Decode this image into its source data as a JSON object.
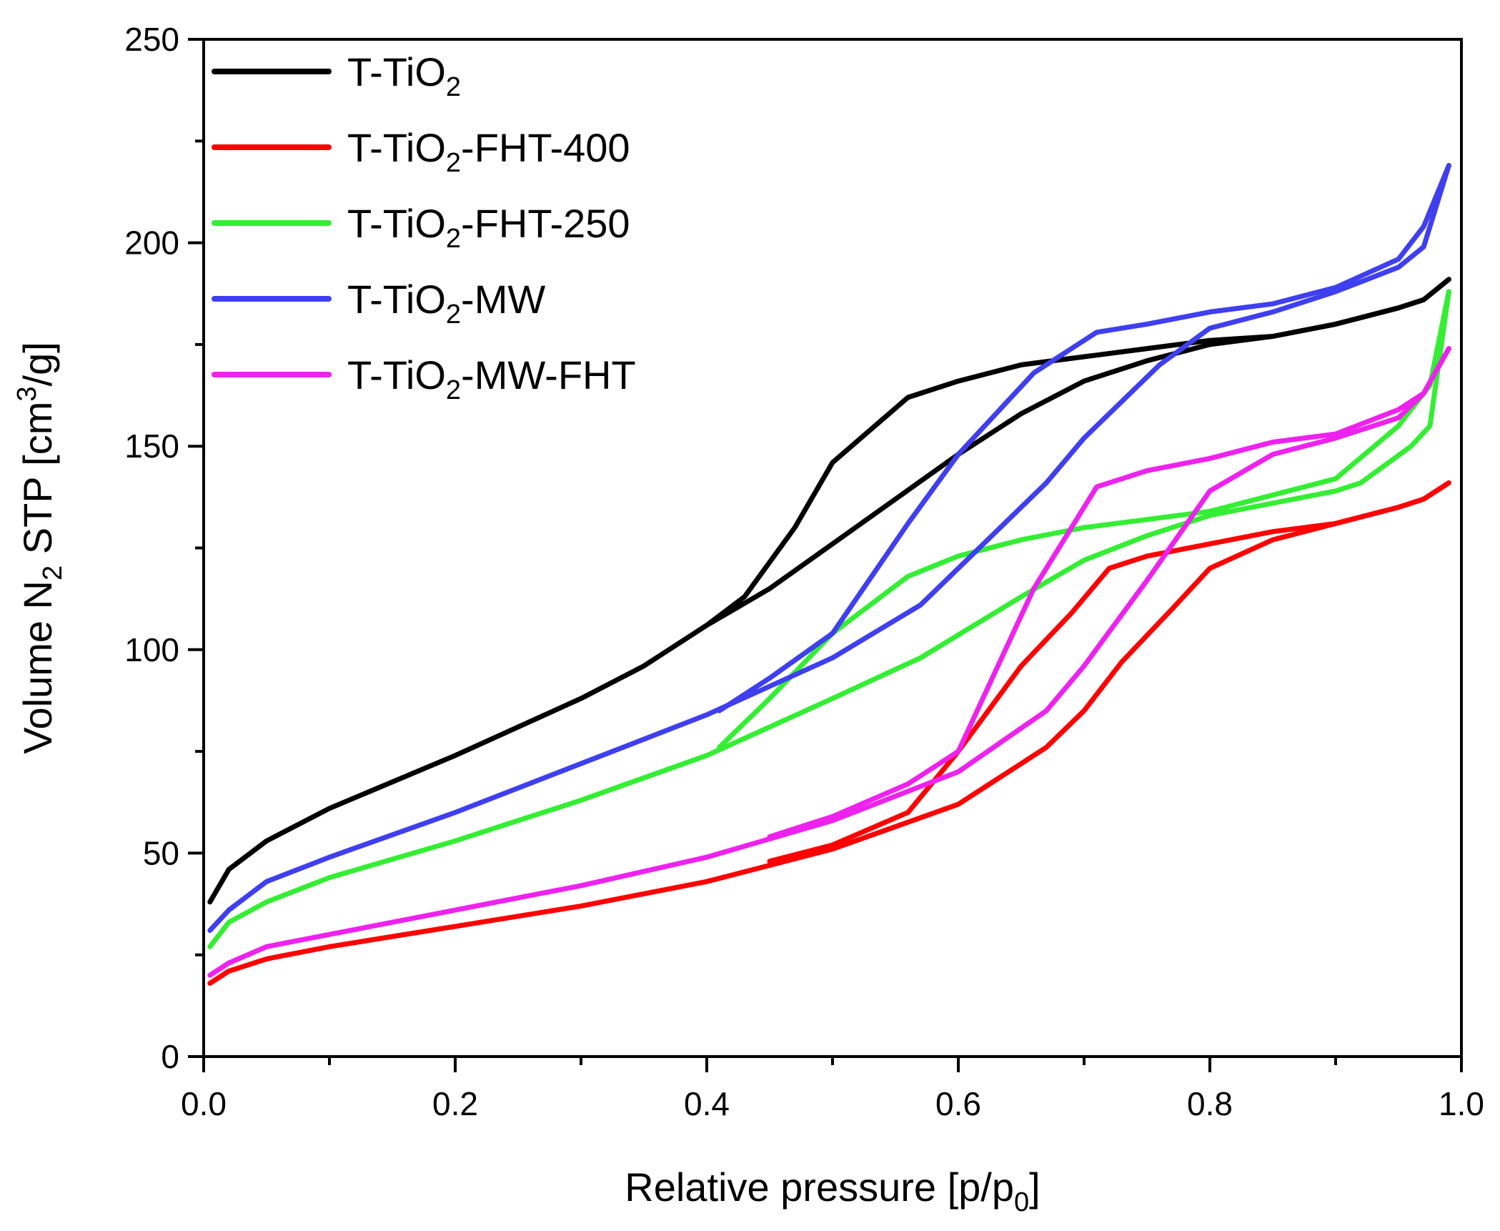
{
  "chart_data": {
    "type": "line",
    "title": "",
    "xlabel": {
      "main": "Relative pressure [p/p",
      "sub": "0",
      "end": "]"
    },
    "ylabel": {
      "a": "Volume N",
      "sub": "2",
      "b": " STP [cm",
      "sup": "3",
      "c": "/g]"
    },
    "xlim": [
      0,
      1.0
    ],
    "ylim": [
      0,
      250
    ],
    "xticks": [
      0.0,
      0.2,
      0.4,
      0.6,
      0.8,
      1.0
    ],
    "xtick_labels": [
      "0.0",
      "0.2",
      "0.4",
      "0.6",
      "0.8",
      "1.0"
    ],
    "yticks": [
      0,
      50,
      100,
      150,
      200,
      250
    ],
    "ytick_labels": [
      "0",
      "50",
      "100",
      "150",
      "200",
      "250"
    ],
    "legend_position": "top-left",
    "series": [
      {
        "name": "T-TiO2",
        "legend": {
          "a": "T-TiO",
          "sub": "2",
          "b": ""
        },
        "color": "#000000",
        "adsorption": [
          [
            0.005,
            38
          ],
          [
            0.02,
            46
          ],
          [
            0.05,
            53
          ],
          [
            0.1,
            61
          ],
          [
            0.2,
            74
          ],
          [
            0.3,
            88
          ],
          [
            0.35,
            96
          ],
          [
            0.4,
            106
          ],
          [
            0.45,
            115
          ],
          [
            0.5,
            126
          ],
          [
            0.55,
            137
          ],
          [
            0.6,
            148
          ],
          [
            0.65,
            158
          ],
          [
            0.7,
            166
          ],
          [
            0.75,
            171
          ],
          [
            0.8,
            175
          ],
          [
            0.85,
            177
          ],
          [
            0.9,
            180
          ],
          [
            0.95,
            184
          ],
          [
            0.97,
            186
          ],
          [
            0.99,
            191
          ]
        ],
        "desorption": [
          [
            0.99,
            191
          ],
          [
            0.97,
            186
          ],
          [
            0.95,
            184
          ],
          [
            0.9,
            180
          ],
          [
            0.85,
            177
          ],
          [
            0.8,
            176
          ],
          [
            0.75,
            174
          ],
          [
            0.7,
            172
          ],
          [
            0.65,
            170
          ],
          [
            0.6,
            166
          ],
          [
            0.56,
            162
          ],
          [
            0.5,
            146
          ],
          [
            0.47,
            130
          ],
          [
            0.43,
            113
          ],
          [
            0.4,
            106
          ]
        ]
      },
      {
        "name": "T-TiO2-FHT-400",
        "legend": {
          "a": "T-TiO",
          "sub": "2",
          "b": "-FHT-400"
        },
        "color": "#ff0000",
        "adsorption": [
          [
            0.005,
            18
          ],
          [
            0.02,
            21
          ],
          [
            0.05,
            24
          ],
          [
            0.1,
            27
          ],
          [
            0.2,
            32
          ],
          [
            0.3,
            37
          ],
          [
            0.4,
            43
          ],
          [
            0.5,
            51
          ],
          [
            0.6,
            62
          ],
          [
            0.67,
            76
          ],
          [
            0.7,
            85
          ],
          [
            0.73,
            97
          ],
          [
            0.77,
            110
          ],
          [
            0.8,
            120
          ],
          [
            0.85,
            127
          ],
          [
            0.9,
            131
          ],
          [
            0.95,
            135
          ],
          [
            0.97,
            137
          ],
          [
            0.99,
            141
          ]
        ],
        "desorption": [
          [
            0.99,
            141
          ],
          [
            0.97,
            137
          ],
          [
            0.95,
            135
          ],
          [
            0.9,
            131
          ],
          [
            0.85,
            129
          ],
          [
            0.8,
            126
          ],
          [
            0.75,
            123
          ],
          [
            0.72,
            120
          ],
          [
            0.69,
            109
          ],
          [
            0.65,
            96
          ],
          [
            0.6,
            75
          ],
          [
            0.56,
            60
          ],
          [
            0.5,
            52
          ],
          [
            0.45,
            48
          ]
        ]
      },
      {
        "name": "T-TiO2-FHT-250",
        "legend": {
          "a": "T-TiO",
          "sub": "2",
          "b": "-FHT-250"
        },
        "color": "#33ee33",
        "adsorption": [
          [
            0.005,
            27
          ],
          [
            0.02,
            33
          ],
          [
            0.05,
            38
          ],
          [
            0.1,
            44
          ],
          [
            0.2,
            53
          ],
          [
            0.3,
            63
          ],
          [
            0.4,
            74
          ],
          [
            0.5,
            88
          ],
          [
            0.57,
            98
          ],
          [
            0.65,
            113
          ],
          [
            0.7,
            122
          ],
          [
            0.75,
            128
          ],
          [
            0.8,
            133
          ],
          [
            0.85,
            136
          ],
          [
            0.9,
            139
          ],
          [
            0.92,
            141
          ],
          [
            0.96,
            150
          ],
          [
            0.975,
            155
          ],
          [
            0.99,
            188
          ]
        ],
        "desorption": [
          [
            0.99,
            188
          ],
          [
            0.975,
            165
          ],
          [
            0.95,
            155
          ],
          [
            0.9,
            142
          ],
          [
            0.85,
            138
          ],
          [
            0.8,
            134
          ],
          [
            0.75,
            132
          ],
          [
            0.7,
            130
          ],
          [
            0.65,
            127
          ],
          [
            0.6,
            123
          ],
          [
            0.56,
            118
          ],
          [
            0.5,
            104
          ],
          [
            0.45,
            88
          ],
          [
            0.41,
            76
          ]
        ]
      },
      {
        "name": "T-TiO2-MW",
        "legend": {
          "a": "T-TiO",
          "sub": "2",
          "b": "-MW"
        },
        "color": "#3f3ff0",
        "adsorption": [
          [
            0.005,
            31
          ],
          [
            0.02,
            36
          ],
          [
            0.05,
            43
          ],
          [
            0.1,
            49
          ],
          [
            0.2,
            60
          ],
          [
            0.3,
            72
          ],
          [
            0.4,
            84
          ],
          [
            0.5,
            98
          ],
          [
            0.57,
            111
          ],
          [
            0.6,
            120
          ],
          [
            0.67,
            141
          ],
          [
            0.7,
            152
          ],
          [
            0.76,
            170
          ],
          [
            0.8,
            179
          ],
          [
            0.85,
            183
          ],
          [
            0.9,
            188
          ],
          [
            0.95,
            194
          ],
          [
            0.97,
            199
          ],
          [
            0.99,
            219
          ]
        ],
        "desorption": [
          [
            0.99,
            219
          ],
          [
            0.97,
            204
          ],
          [
            0.95,
            196
          ],
          [
            0.9,
            189
          ],
          [
            0.85,
            185
          ],
          [
            0.8,
            183
          ],
          [
            0.75,
            180
          ],
          [
            0.71,
            178
          ],
          [
            0.66,
            168
          ],
          [
            0.6,
            148
          ],
          [
            0.56,
            131
          ],
          [
            0.5,
            104
          ],
          [
            0.45,
            93
          ],
          [
            0.41,
            85
          ]
        ]
      },
      {
        "name": "T-TiO2-MW-FHT",
        "legend": {
          "a": "T-TiO",
          "sub": "2",
          "b": "-MW-FHT"
        },
        "color": "#ee22ee",
        "adsorption": [
          [
            0.005,
            20
          ],
          [
            0.02,
            23
          ],
          [
            0.05,
            27
          ],
          [
            0.1,
            30
          ],
          [
            0.2,
            36
          ],
          [
            0.3,
            42
          ],
          [
            0.4,
            49
          ],
          [
            0.5,
            58
          ],
          [
            0.6,
            70
          ],
          [
            0.67,
            85
          ],
          [
            0.7,
            96
          ],
          [
            0.75,
            117
          ],
          [
            0.8,
            139
          ],
          [
            0.85,
            148
          ],
          [
            0.9,
            152
          ],
          [
            0.95,
            157
          ],
          [
            0.97,
            163
          ],
          [
            0.99,
            174
          ]
        ],
        "desorption": [
          [
            0.99,
            174
          ],
          [
            0.97,
            163
          ],
          [
            0.95,
            159
          ],
          [
            0.9,
            153
          ],
          [
            0.85,
            151
          ],
          [
            0.8,
            147
          ],
          [
            0.75,
            144
          ],
          [
            0.71,
            140
          ],
          [
            0.66,
            115
          ],
          [
            0.6,
            75
          ],
          [
            0.56,
            67
          ],
          [
            0.5,
            59
          ],
          [
            0.45,
            54
          ]
        ]
      }
    ]
  }
}
